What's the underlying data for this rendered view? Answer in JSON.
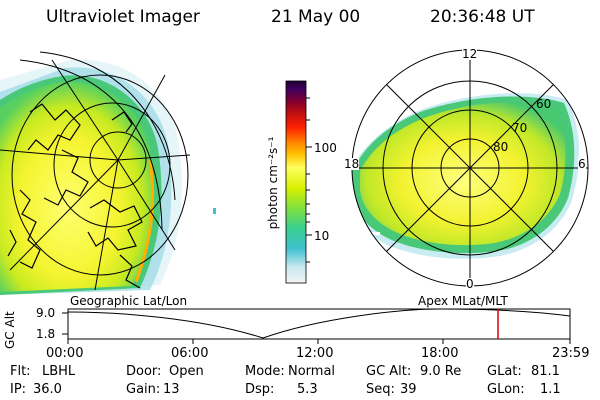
{
  "header": {
    "instrument": "Ultraviolet Imager",
    "date": "21 May 00",
    "time": "20:36:48 UT"
  },
  "left_panel": {
    "label": "Geographic Lat/Lon"
  },
  "right_panel": {
    "label": "Apex MLat/MLT",
    "mlt_labels": [
      "12",
      "18",
      "6",
      "0"
    ],
    "mlat_labels": [
      "60",
      "70",
      "80"
    ]
  },
  "colorbar": {
    "unit_label": "photon cm⁻²s⁻¹",
    "ticks": [
      "100",
      "10"
    ],
    "scale": "log",
    "colors": [
      "#f0f0f0",
      "#c8e8f0",
      "#40c0d0",
      "#40d080",
      "#80e040",
      "#d8f000",
      "#ffff60",
      "#ffc000",
      "#ff8000",
      "#ff2000",
      "#c01010",
      "#800030",
      "#400060",
      "#200030"
    ]
  },
  "altitude_plot": {
    "y_label": "GC Alt",
    "y_ticks": [
      "9.0",
      "1.8"
    ],
    "x_ticks": [
      "00:00",
      "06:00",
      "12:00",
      "18:00",
      "23:59"
    ],
    "current_time_marker_color": "#e00000"
  },
  "status": {
    "row1": [
      {
        "label": "Flt:",
        "value": "LBHL"
      },
      {
        "label": "Door:",
        "value": "Open"
      },
      {
        "label": "Mode:",
        "value": "Normal"
      },
      {
        "label": "GC Alt:",
        "value": "9.0 Re"
      },
      {
        "label": "GLat:",
        "value": "81.1"
      }
    ],
    "row2": [
      {
        "label": "IP:",
        "value": "36.0"
      },
      {
        "label": "Gain:",
        "value": "13"
      },
      {
        "label": "Dsp:",
        "value": "5.3"
      },
      {
        "label": "Seq:",
        "value": "39"
      },
      {
        "label": "GLon:",
        "value": "1.1"
      }
    ]
  }
}
